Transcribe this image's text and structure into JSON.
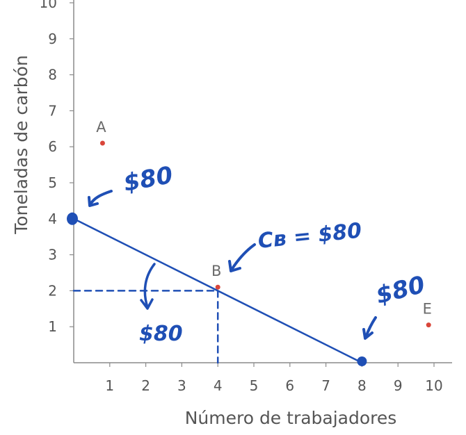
{
  "chart_data": {
    "type": "scatter",
    "title": "",
    "xlabel": "Número de trabajadores",
    "ylabel": "Toneladas de carbón",
    "xlim": [
      0,
      10.4
    ],
    "ylim": [
      0,
      10
    ],
    "x_ticks": [
      1,
      2,
      3,
      4,
      5,
      6,
      7,
      8,
      9,
      10
    ],
    "y_ticks": [
      1,
      2,
      3,
      4,
      5,
      6,
      7,
      8,
      9,
      10
    ],
    "grid": false,
    "points": [
      {
        "label": "A",
        "x": 0.8,
        "y": 6.1,
        "color": "#d9463a"
      },
      {
        "label": "B",
        "x": 4,
        "y": 2.1,
        "color": "#d9463a"
      },
      {
        "label": "E",
        "x": 9.85,
        "y": 1.05,
        "color": "#d9463a"
      }
    ],
    "budget_line": {
      "x": [
        0,
        8
      ],
      "y": [
        4,
        0
      ],
      "color": "#1f4fb5"
    },
    "guides": {
      "x": 4,
      "y": 2
    },
    "annotations": {
      "left": "$80",
      "middle": "Cʙ = $80",
      "bottom": "$80",
      "right": "$80"
    }
  },
  "colors": {
    "ink": "#1f4fb5",
    "axis": "#8a8a8a",
    "text": "#555555",
    "point": "#d9463a"
  }
}
